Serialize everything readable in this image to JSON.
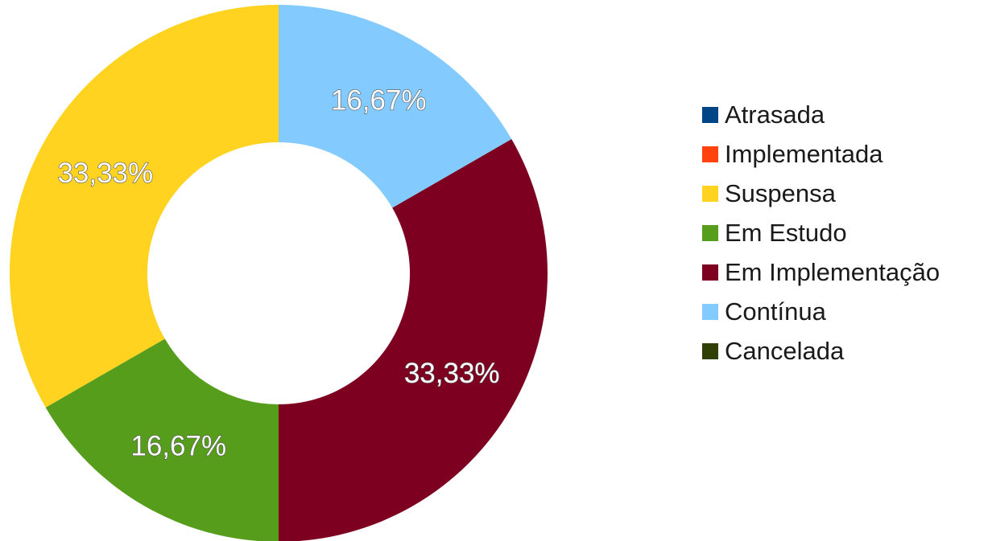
{
  "chart_data": {
    "type": "pie",
    "variant": "donut",
    "categories": [
      "Atrasada",
      "Implementada",
      "Suspensa",
      "Em Estudo",
      "Em Implementação",
      "Contínua",
      "Cancelada"
    ],
    "values": [
      0,
      0,
      33.33,
      16.67,
      33.33,
      16.67,
      0
    ],
    "value_labels": [
      "",
      "",
      "33,33%",
      "16,67%",
      "33,33%",
      "16,67%",
      ""
    ],
    "colors": [
      "#004586",
      "#ff420e",
      "#ffd320",
      "#579d1c",
      "#7e0021",
      "#83caff",
      "#314004"
    ],
    "legend_position": "right"
  }
}
